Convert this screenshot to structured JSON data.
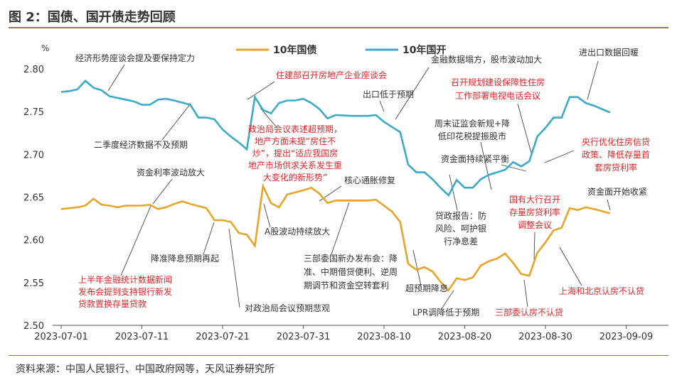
{
  "figure": {
    "title": "图 2：国债、国开债走势回顾",
    "source": "资料来源：中国人民银行、中国政府网等，天风证券研究所"
  },
  "colors": {
    "gov": "#e8a526",
    "cdb": "#3aabc8",
    "note_black": "#333333",
    "note_red": "#e0262b",
    "rule": "#9e7a45"
  },
  "chart_data": {
    "type": "line",
    "ylabel": "%",
    "ylim": [
      2.5,
      2.8
    ],
    "yticks": [
      "2.50",
      "2.55",
      "2.60",
      "2.65",
      "2.70",
      "2.75",
      "2.80"
    ],
    "xticks": [
      "2023-07-01",
      "2023-07-11",
      "2023-07-21",
      "2023-07-31",
      "2023-08-10",
      "2023-08-20",
      "2023-08-30",
      "2023-09-09"
    ],
    "legend_position": "top-center",
    "series": [
      {
        "name": "10年国债",
        "color": "#e8a526",
        "points": [
          [
            0,
            2.636
          ],
          [
            2,
            2.638
          ],
          [
            3,
            2.64
          ],
          [
            4,
            2.648
          ],
          [
            5,
            2.641
          ],
          [
            6,
            2.64
          ],
          [
            7,
            2.638
          ],
          [
            8,
            2.64
          ],
          [
            10,
            2.64
          ],
          [
            11,
            2.641
          ],
          [
            12,
            2.636
          ],
          [
            13,
            2.638
          ],
          [
            14,
            2.642
          ],
          [
            15,
            2.645
          ],
          [
            16,
            2.642
          ],
          [
            18,
            2.637
          ],
          [
            19,
            2.623
          ],
          [
            20,
            2.623
          ],
          [
            21,
            2.621
          ],
          [
            22,
            2.608
          ],
          [
            23,
            2.606
          ],
          [
            24,
            2.593
          ],
          [
            25,
            2.663
          ],
          [
            26,
            2.643
          ],
          [
            27,
            2.638
          ],
          [
            28,
            2.653
          ],
          [
            30,
            2.658
          ],
          [
            31,
            2.661
          ],
          [
            32,
            2.654
          ],
          [
            33,
            2.643
          ],
          [
            34,
            2.646
          ],
          [
            36,
            2.646
          ],
          [
            38,
            2.646
          ],
          [
            39,
            2.647
          ],
          [
            40,
            2.64
          ],
          [
            41,
            2.633
          ],
          [
            42,
            2.621
          ],
          [
            43,
            2.572
          ],
          [
            44,
            2.565
          ],
          [
            45,
            2.568
          ],
          [
            46,
            2.563
          ],
          [
            47,
            2.551
          ],
          [
            48,
            2.541
          ],
          [
            49,
            2.555
          ],
          [
            50,
            2.553
          ],
          [
            51,
            2.556
          ],
          [
            52,
            2.57
          ],
          [
            53,
            2.575
          ],
          [
            54,
            2.578
          ],
          [
            55,
            2.584
          ],
          [
            56,
            2.573
          ],
          [
            57,
            2.56
          ],
          [
            58,
            2.558
          ],
          [
            59,
            2.585
          ],
          [
            60,
            2.597
          ],
          [
            61,
            2.611
          ],
          [
            62,
            2.614
          ],
          [
            63,
            2.637
          ],
          [
            64,
            2.635
          ],
          [
            65,
            2.638
          ],
          [
            66,
            2.636
          ],
          [
            68,
            2.631
          ]
        ]
      },
      {
        "name": "10年国开",
        "color": "#3aabc8",
        "points": [
          [
            0,
            2.773
          ],
          [
            1,
            2.774
          ],
          [
            2,
            2.776
          ],
          [
            3,
            2.786
          ],
          [
            4,
            2.778
          ],
          [
            5,
            2.775
          ],
          [
            6,
            2.768
          ],
          [
            7,
            2.766
          ],
          [
            8,
            2.764
          ],
          [
            9,
            2.762
          ],
          [
            10,
            2.758
          ],
          [
            11,
            2.758
          ],
          [
            12,
            2.764
          ],
          [
            13,
            2.765
          ],
          [
            14,
            2.763
          ],
          [
            16,
            2.758
          ],
          [
            17,
            2.743
          ],
          [
            18,
            2.743
          ],
          [
            19,
            2.741
          ],
          [
            20,
            2.729
          ],
          [
            21,
            2.721
          ],
          [
            22,
            2.714
          ],
          [
            23,
            2.706
          ],
          [
            24,
            2.767
          ],
          [
            25,
            2.752
          ],
          [
            26,
            2.748
          ],
          [
            27,
            2.76
          ],
          [
            28,
            2.763
          ],
          [
            29,
            2.763
          ],
          [
            30,
            2.765
          ],
          [
            31,
            2.76
          ],
          [
            32,
            2.753
          ],
          [
            33,
            2.742
          ],
          [
            34,
            2.746
          ],
          [
            36,
            2.745
          ],
          [
            38,
            2.745
          ],
          [
            39,
            2.746
          ],
          [
            40,
            2.738
          ],
          [
            41,
            2.732
          ],
          [
            42,
            2.726
          ],
          [
            43,
            2.688
          ],
          [
            44,
            2.679
          ],
          [
            45,
            2.679
          ],
          [
            46,
            2.671
          ],
          [
            47,
            2.661
          ],
          [
            48,
            2.652
          ],
          [
            49,
            2.67
          ],
          [
            50,
            2.661
          ],
          [
            51,
            2.661
          ],
          [
            52,
            2.671
          ],
          [
            53,
            2.676
          ],
          [
            54,
            2.679
          ],
          [
            55,
            2.682
          ],
          [
            56,
            2.691
          ],
          [
            57,
            2.686
          ],
          [
            58,
            2.692
          ],
          [
            59,
            2.721
          ],
          [
            60,
            2.731
          ],
          [
            61,
            2.743
          ],
          [
            62,
            2.743
          ],
          [
            63,
            2.767
          ],
          [
            64,
            2.767
          ],
          [
            65,
            2.76
          ],
          [
            66,
            2.757
          ],
          [
            68,
            2.749
          ]
        ]
      }
    ],
    "annotations": [
      {
        "text": "经济形势座谈会提及要保持定力",
        "color": "black"
      },
      {
        "text": "二季度经济数据不及预期",
        "color": "black"
      },
      {
        "text": "资金利率波动放大",
        "color": "black"
      },
      {
        "text": "降准降息预期再起",
        "color": "black"
      },
      {
        "text": "上半年金融统计数据新闻发布会提到支持银行新发贷款置换存量贷款",
        "color": "red"
      },
      {
        "text": "对政治局会议预期悲观",
        "color": "black"
      },
      {
        "text": "住建部召开房地产企业座谈会",
        "color": "red"
      },
      {
        "text": "政治局会议表述超预期，地产方面未提“房住不炒”，提出“适应我国房地产市场供求关系发生重大变化的新形势”",
        "color": "red"
      },
      {
        "text": "A股波动持续放大",
        "color": "black"
      },
      {
        "text": "核心通胀修复",
        "color": "black"
      },
      {
        "text": "三部委国新办发布会：降准、中期借贷便利、逆周期调节和资金空转套利",
        "color": "black"
      },
      {
        "text": "金融数据塌方，股市波动加大",
        "color": "black"
      },
      {
        "text": "出口低于预期",
        "color": "black"
      },
      {
        "text": "超预期降息",
        "color": "black"
      },
      {
        "text": "LPR调降低于预期",
        "color": "black"
      },
      {
        "text": "贷政报告：防风险、呵护银行净息差",
        "color": "black"
      },
      {
        "text": "周末证监会新规+降低印花税提振股市",
        "color": "black"
      },
      {
        "text": "资金面持续紧平衡",
        "color": "black"
      },
      {
        "text": "召开规划建设保障性住房工作部署电视电话会议",
        "color": "red"
      },
      {
        "text": "国有大行召开存量房贷利率调整会议",
        "color": "red"
      },
      {
        "text": "三部委认房不认贷",
        "color": "red"
      },
      {
        "text": "进出口数据回暖",
        "color": "black"
      },
      {
        "text": "央行优化住房信贷政策、降低存量首套房贷利率",
        "color": "red"
      },
      {
        "text": "资金面开始收紧",
        "color": "black"
      },
      {
        "text": "上海和北京认房不认贷",
        "color": "red"
      }
    ]
  }
}
